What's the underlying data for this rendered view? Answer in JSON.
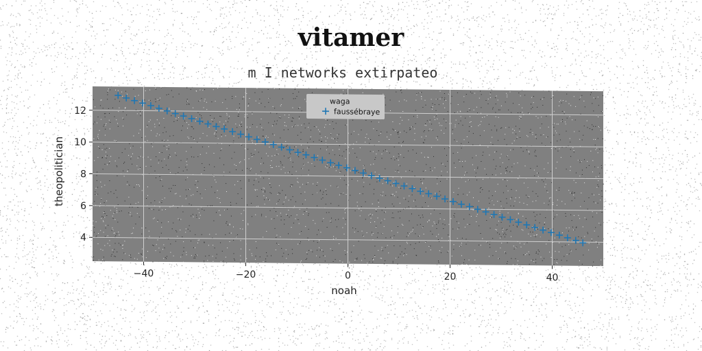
{
  "title": "vitamer",
  "subtitle": "m I networks extirpateo",
  "colors": {
    "plot_background": "#808080",
    "grid": "#d0d0d0",
    "series_marker": "#1f77b4",
    "legend_background": "#c8c8c8"
  },
  "chart_data": {
    "type": "scatter",
    "xlabel": "noah",
    "ylabel": "theopolitician",
    "xlim": [
      -50,
      50
    ],
    "ylim": [
      2.5,
      13.5
    ],
    "xticks": [
      -40,
      -20,
      0,
      20,
      40
    ],
    "xtick_labels": [
      "−40",
      "−20",
      "0",
      "20",
      "40"
    ],
    "yticks": [
      4,
      6,
      8,
      10,
      12
    ],
    "ytick_labels": [
      "4",
      "6",
      "8",
      "10",
      "12"
    ],
    "grid": true,
    "legend": {
      "placement": "top-center",
      "entries": [
        {
          "label": "waga",
          "marker": "none"
        },
        {
          "label": "faussébraye",
          "marker": "plus"
        }
      ]
    },
    "series": [
      {
        "name": "faussébraye",
        "marker": "plus",
        "x": [
          -45,
          -43.4,
          -41.8,
          -40.2,
          -38.6,
          -37,
          -35.4,
          -33.8,
          -32.2,
          -30.6,
          -29,
          -27.4,
          -25.8,
          -24.2,
          -22.6,
          -21,
          -19.4,
          -17.8,
          -16.2,
          -14.6,
          -13,
          -11.4,
          -9.8,
          -8.2,
          -6.6,
          -5,
          -3.4,
          -1.8,
          -0.2,
          1.4,
          3,
          4.6,
          6.2,
          7.8,
          9.4,
          11,
          12.6,
          14.2,
          15.8,
          17.4,
          19,
          20.6,
          22.2,
          23.8,
          25.4,
          27,
          28.6,
          30.2,
          31.8,
          33.4,
          35,
          36.6,
          38.2,
          39.8,
          41.4,
          43,
          44.6,
          46
        ],
        "y": [
          12.95,
          12.79,
          12.63,
          12.48,
          12.32,
          12.16,
          12.0,
          11.84,
          11.69,
          11.53,
          11.37,
          11.21,
          11.05,
          10.9,
          10.74,
          10.58,
          10.42,
          10.26,
          10.11,
          9.95,
          9.79,
          9.63,
          9.47,
          9.32,
          9.16,
          9.0,
          8.84,
          8.68,
          8.53,
          8.37,
          8.21,
          8.05,
          7.89,
          7.74,
          7.58,
          7.42,
          7.26,
          7.1,
          6.95,
          6.79,
          6.63,
          6.47,
          6.31,
          6.16,
          6.0,
          5.84,
          5.68,
          5.52,
          5.37,
          5.21,
          5.05,
          4.89,
          4.73,
          4.58,
          4.42,
          4.26,
          4.1,
          3.95
        ]
      }
    ]
  }
}
